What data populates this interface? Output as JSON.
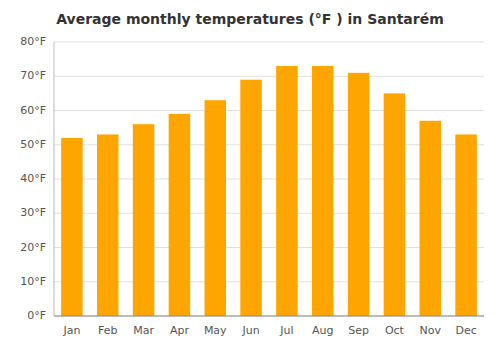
{
  "chart_data": {
    "type": "bar",
    "title": "Average monthly temperatures (°F ) in Santarém",
    "categories": [
      "Jan",
      "Feb",
      "Mar",
      "Apr",
      "May",
      "Jun",
      "Jul",
      "Aug",
      "Sep",
      "Oct",
      "Nov",
      "Dec"
    ],
    "values": [
      52,
      53,
      56,
      59,
      63,
      69,
      73,
      73,
      71,
      65,
      57,
      53
    ],
    "color": "#FFA500",
    "ylim": [
      0,
      80
    ],
    "yticks": [
      {
        "value": 0,
        "label": "0°F"
      },
      {
        "value": 10,
        "label": "10°F"
      },
      {
        "value": 20,
        "label": "20°F"
      },
      {
        "value": 30,
        "label": "30°F"
      },
      {
        "value": 40,
        "label": "40°F"
      },
      {
        "value": 50,
        "label": "50°F"
      },
      {
        "value": 60,
        "label": "60°F"
      },
      {
        "value": 70,
        "label": "70°F"
      },
      {
        "value": 80,
        "label": "80°F"
      }
    ],
    "grid": true
  }
}
